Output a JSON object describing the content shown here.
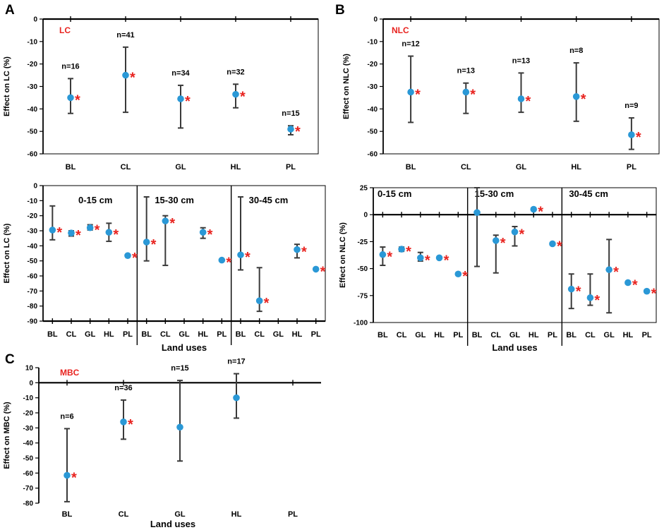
{
  "figure": {
    "colors": {
      "point": "#2a98d6",
      "star": "#e8231f",
      "error_bar": "#3a3a3a",
      "axis": "#000000"
    },
    "star_symbol": "*"
  },
  "chart_data": [
    {
      "id": "A_top",
      "panel_letter": "A",
      "type": "scatter",
      "tag": "LC",
      "ylabel": "Effect on LC (%)",
      "xlabel": "",
      "ylim": [
        -60,
        0
      ],
      "yticks": [
        0,
        -10,
        -20,
        -30,
        -40,
        -50,
        -60
      ],
      "groups": [
        {
          "label": "",
          "categories": [
            "BL",
            "CL",
            "GL",
            "HL",
            "PL"
          ]
        }
      ],
      "points": [
        {
          "group": 0,
          "cat": 0,
          "value": -35,
          "err_low": -42,
          "err_high": -26.5,
          "star": true,
          "n": "n=16"
        },
        {
          "group": 0,
          "cat": 1,
          "value": -25,
          "err_low": -41.5,
          "err_high": -12.5,
          "star": true,
          "n": "n=41"
        },
        {
          "group": 0,
          "cat": 2,
          "value": -35.5,
          "err_low": -48.5,
          "err_high": -29.5,
          "star": true,
          "n": "n=34"
        },
        {
          "group": 0,
          "cat": 3,
          "value": -33.5,
          "err_low": -39.5,
          "err_high": -29,
          "star": true,
          "n": "n=32"
        },
        {
          "group": 0,
          "cat": 4,
          "value": -49,
          "err_low": -51.5,
          "err_high": -47.5,
          "star": true,
          "n": "n=15"
        }
      ]
    },
    {
      "id": "B_top",
      "panel_letter": "B",
      "type": "scatter",
      "tag": "NLC",
      "ylabel": "Effect on NLC (%)",
      "xlabel": "",
      "ylim": [
        -60,
        0
      ],
      "yticks": [
        0,
        -10,
        -20,
        -30,
        -40,
        -50,
        -60
      ],
      "groups": [
        {
          "label": "",
          "categories": [
            "BL",
            "CL",
            "GL",
            "HL",
            "PL"
          ]
        }
      ],
      "points": [
        {
          "group": 0,
          "cat": 0,
          "value": -32.5,
          "err_low": -46,
          "err_high": -16.5,
          "star": true,
          "n": "n=12"
        },
        {
          "group": 0,
          "cat": 1,
          "value": -32.5,
          "err_low": -42,
          "err_high": -28.5,
          "star": true,
          "n": "n=13"
        },
        {
          "group": 0,
          "cat": 2,
          "value": -35.5,
          "err_low": -41.5,
          "err_high": -24,
          "star": true,
          "n": "n=13"
        },
        {
          "group": 0,
          "cat": 3,
          "value": -34.5,
          "err_low": -45.5,
          "err_high": -19.5,
          "star": true,
          "n": "n=8"
        },
        {
          "group": 0,
          "cat": 4,
          "value": -51.5,
          "err_low": -58,
          "err_high": -44,
          "star": true,
          "n": "n=9"
        }
      ]
    },
    {
      "id": "A_bottom",
      "panel_letter": "",
      "type": "scatter",
      "tag": "",
      "ylabel": "Effect on LC (%)",
      "xlabel": "Land uses",
      "ylim": [
        -90,
        0
      ],
      "yticks": [
        0,
        -10,
        -20,
        -30,
        -40,
        -50,
        -60,
        -70,
        -80,
        -90
      ],
      "groups": [
        {
          "label": "0-15 cm",
          "categories": [
            "BL",
            "CL",
            "GL",
            "HL",
            "PL"
          ]
        },
        {
          "label": "15-30 cm",
          "categories": [
            "BL",
            "CL",
            "GL",
            "HL",
            "PL"
          ]
        },
        {
          "label": "30-45 cm",
          "categories": [
            "BL",
            "CL",
            "GL",
            "HL",
            "PL"
          ]
        }
      ],
      "points": [
        {
          "group": 0,
          "cat": 0,
          "value": -29.5,
          "err_low": -36,
          "err_high": -13.5,
          "star": true
        },
        {
          "group": 0,
          "cat": 1,
          "value": -31.5,
          "err_low": -33.5,
          "err_high": -30,
          "star": true
        },
        {
          "group": 0,
          "cat": 2,
          "value": -28,
          "err_low": -29.5,
          "err_high": -26,
          "star": true
        },
        {
          "group": 0,
          "cat": 3,
          "value": -31,
          "err_low": -37,
          "err_high": -25,
          "star": true
        },
        {
          "group": 0,
          "cat": 4,
          "value": -46.5,
          "err_low": -47,
          "err_high": -46,
          "star": true
        },
        {
          "group": 1,
          "cat": 0,
          "value": -37.5,
          "err_low": -50,
          "err_high": -7.5,
          "star": true
        },
        {
          "group": 1,
          "cat": 1,
          "value": -23.5,
          "err_low": -53,
          "err_high": -20,
          "star": true
        },
        {
          "group": 1,
          "cat": 3,
          "value": -31,
          "err_low": -35,
          "err_high": -28,
          "star": true
        },
        {
          "group": 1,
          "cat": 4,
          "value": -49.5,
          "err_low": -50,
          "err_high": -49,
          "star": true
        },
        {
          "group": 2,
          "cat": 0,
          "value": -46,
          "err_low": -56,
          "err_high": -7.5,
          "star": true
        },
        {
          "group": 2,
          "cat": 1,
          "value": -76.5,
          "err_low": -83.5,
          "err_high": -54.5,
          "star": true
        },
        {
          "group": 2,
          "cat": 3,
          "value": -42.5,
          "err_low": -48,
          "err_high": -39,
          "star": true
        },
        {
          "group": 2,
          "cat": 4,
          "value": -55.5,
          "err_low": -56,
          "err_high": -55,
          "star": true
        }
      ]
    },
    {
      "id": "B_bottom",
      "panel_letter": "",
      "type": "scatter",
      "tag": "",
      "ylabel": "Effect on NLC (%)",
      "xlabel": "Land uses",
      "ylim": [
        -100,
        25
      ],
      "yticks": [
        25,
        0,
        -25,
        -50,
        -75,
        -100
      ],
      "groups": [
        {
          "label": "0-15 cm",
          "categories": [
            "BL",
            "CL",
            "GL",
            "HL",
            "PL"
          ]
        },
        {
          "label": "15-30 cm",
          "categories": [
            "BL",
            "CL",
            "GL",
            "HL",
            "PL"
          ]
        },
        {
          "label": "30-45 cm",
          "categories": [
            "BL",
            "CL",
            "GL",
            "HL",
            "PL"
          ]
        }
      ],
      "points": [
        {
          "group": 0,
          "cat": 0,
          "value": -37,
          "err_low": -47,
          "err_high": -30,
          "star": true
        },
        {
          "group": 0,
          "cat": 1,
          "value": -32,
          "err_low": -34,
          "err_high": -30,
          "star": true
        },
        {
          "group": 0,
          "cat": 2,
          "value": -40,
          "err_low": -43,
          "err_high": -35,
          "star": true
        },
        {
          "group": 0,
          "cat": 3,
          "value": -40,
          "err_low": -41,
          "err_high": -39,
          "star": true
        },
        {
          "group": 0,
          "cat": 4,
          "value": -55,
          "err_low": -56,
          "err_high": -54,
          "star": true
        },
        {
          "group": 1,
          "cat": 0,
          "value": 2,
          "err_low": -48,
          "err_high": 25,
          "star": false
        },
        {
          "group": 1,
          "cat": 1,
          "value": -24,
          "err_low": -54,
          "err_high": -19,
          "star": true
        },
        {
          "group": 1,
          "cat": 2,
          "value": -16,
          "err_low": -29,
          "err_high": -11,
          "star": true
        },
        {
          "group": 1,
          "cat": 3,
          "value": 5,
          "err_low": 4,
          "err_high": 6,
          "star": true
        },
        {
          "group": 1,
          "cat": 4,
          "value": -27,
          "err_low": -28,
          "err_high": -26,
          "star": true
        },
        {
          "group": 2,
          "cat": 0,
          "value": -69,
          "err_low": -87,
          "err_high": -55,
          "star": true
        },
        {
          "group": 2,
          "cat": 1,
          "value": -77,
          "err_low": -84,
          "err_high": -55,
          "star": true
        },
        {
          "group": 2,
          "cat": 2,
          "value": -51,
          "err_low": -91,
          "err_high": -23,
          "star": true
        },
        {
          "group": 2,
          "cat": 3,
          "value": -63,
          "err_low": -64,
          "err_high": -62,
          "star": true
        },
        {
          "group": 2,
          "cat": 4,
          "value": -71,
          "err_low": -72,
          "err_high": -70,
          "star": true
        }
      ]
    },
    {
      "id": "C",
      "panel_letter": "C",
      "type": "scatter",
      "tag": "MBC",
      "ylabel": "Effect on MBC (%)",
      "xlabel": "Land uses",
      "ylim": [
        -80,
        10
      ],
      "yticks": [
        10,
        0,
        -10,
        -20,
        -30,
        -40,
        -50,
        -60,
        -70,
        -80
      ],
      "groups": [
        {
          "label": "",
          "categories": [
            "BL",
            "CL",
            "GL",
            "HL",
            "PL"
          ]
        }
      ],
      "points": [
        {
          "group": 0,
          "cat": 0,
          "value": -61.5,
          "err_low": -79,
          "err_high": -30.5,
          "star": true,
          "n": "n=6"
        },
        {
          "group": 0,
          "cat": 1,
          "value": -26,
          "err_low": -37.5,
          "err_high": -11.5,
          "star": true,
          "n": "n=36"
        },
        {
          "group": 0,
          "cat": 2,
          "value": -29.5,
          "err_low": -52,
          "err_high": 1.5,
          "star": false,
          "n": "n=15"
        },
        {
          "group": 0,
          "cat": 3,
          "value": -10,
          "err_low": -23.5,
          "err_high": 6,
          "star": false,
          "n": "n=17"
        }
      ]
    }
  ]
}
